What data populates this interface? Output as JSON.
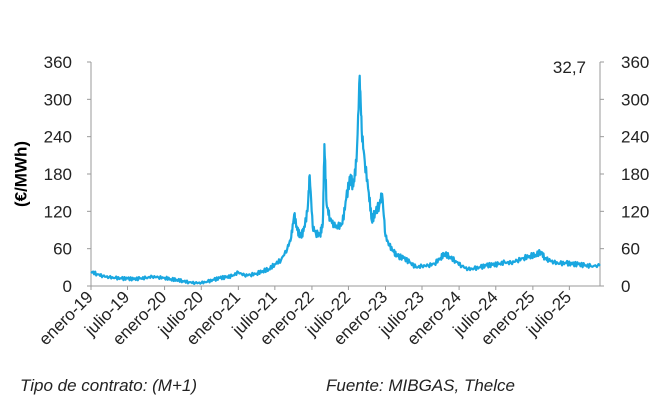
{
  "chart_data": {
    "type": "line",
    "ylabel": "(€/MWh)",
    "ylim": [
      0,
      360
    ],
    "yticks": [
      0,
      60,
      120,
      180,
      240,
      300,
      360
    ],
    "ytick_labels": [
      "0",
      "60",
      "120",
      "180",
      "240",
      "300",
      "360"
    ],
    "xlim": [
      "2019-01-01",
      "2025-11-30"
    ],
    "xticks": [
      "2019-01-01",
      "2019-07-01",
      "2020-01-01",
      "2020-07-01",
      "2021-01-01",
      "2021-07-01",
      "2022-01-01",
      "2022-07-01",
      "2023-01-01",
      "2023-07-01",
      "2024-01-01",
      "2024-07-01",
      "2025-01-01",
      "2025-07-01"
    ],
    "xtick_labels": [
      "enero-19",
      "julio-19",
      "enero-20",
      "julio-20",
      "enero-21",
      "julio-21",
      "enero-22",
      "julio-22",
      "enero-23",
      "julio-23",
      "enero-24",
      "julio-24",
      "enero-25",
      "julio-25"
    ],
    "last_value_label": "32,7",
    "grid": false,
    "legend": "none",
    "series": [
      {
        "color": "#1aa7e0",
        "points": [
          [
            "2019-01-01",
            23
          ],
          [
            "2019-02-01",
            19
          ],
          [
            "2019-03-01",
            16
          ],
          [
            "2019-04-01",
            14
          ],
          [
            "2019-05-01",
            13
          ],
          [
            "2019-06-01",
            12
          ],
          [
            "2019-07-01",
            12
          ],
          [
            "2019-08-01",
            11
          ],
          [
            "2019-09-01",
            12
          ],
          [
            "2019-10-01",
            13
          ],
          [
            "2019-11-01",
            15
          ],
          [
            "2019-12-01",
            14
          ],
          [
            "2020-01-01",
            13
          ],
          [
            "2020-02-01",
            11
          ],
          [
            "2020-03-01",
            10
          ],
          [
            "2020-04-01",
            8
          ],
          [
            "2020-05-01",
            6
          ],
          [
            "2020-06-01",
            5
          ],
          [
            "2020-07-01",
            5
          ],
          [
            "2020-08-01",
            7
          ],
          [
            "2020-09-01",
            10
          ],
          [
            "2020-10-01",
            13
          ],
          [
            "2020-11-01",
            14
          ],
          [
            "2020-12-01",
            16
          ],
          [
            "2021-01-01",
            22
          ],
          [
            "2021-02-01",
            17
          ],
          [
            "2021-03-01",
            18
          ],
          [
            "2021-04-01",
            20
          ],
          [
            "2021-05-01",
            24
          ],
          [
            "2021-06-01",
            27
          ],
          [
            "2021-07-01",
            35
          ],
          [
            "2021-08-01",
            42
          ],
          [
            "2021-09-01",
            60
          ],
          [
            "2021-09-20",
            78
          ],
          [
            "2021-10-05",
            115
          ],
          [
            "2021-10-20",
            90
          ],
          [
            "2021-11-05",
            80
          ],
          [
            "2021-11-20",
            88
          ],
          [
            "2021-12-10",
            120
          ],
          [
            "2021-12-21",
            178
          ],
          [
            "2022-01-05",
            95
          ],
          [
            "2022-01-20",
            85
          ],
          [
            "2022-02-10",
            82
          ],
          [
            "2022-02-24",
            100
          ],
          [
            "2022-03-04",
            228
          ],
          [
            "2022-03-15",
            130
          ],
          [
            "2022-04-01",
            108
          ],
          [
            "2022-04-20",
            98
          ],
          [
            "2022-05-10",
            95
          ],
          [
            "2022-06-01",
            100
          ],
          [
            "2022-06-20",
            140
          ],
          [
            "2022-07-10",
            175
          ],
          [
            "2022-07-25",
            160
          ],
          [
            "2022-08-10",
            200
          ],
          [
            "2022-08-26",
            338
          ],
          [
            "2022-09-05",
            250
          ],
          [
            "2022-09-20",
            200
          ],
          [
            "2022-10-10",
            150
          ],
          [
            "2022-10-25",
            105
          ],
          [
            "2022-11-10",
            118
          ],
          [
            "2022-12-01",
            130
          ],
          [
            "2022-12-15",
            148
          ],
          [
            "2023-01-01",
            80
          ],
          [
            "2023-01-20",
            65
          ],
          [
            "2023-02-10",
            55
          ],
          [
            "2023-03-01",
            48
          ],
          [
            "2023-04-01",
            45
          ],
          [
            "2023-05-01",
            38
          ],
          [
            "2023-06-01",
            30
          ],
          [
            "2023-07-01",
            32
          ],
          [
            "2023-08-01",
            33
          ],
          [
            "2023-09-01",
            36
          ],
          [
            "2023-10-01",
            45
          ],
          [
            "2023-10-20",
            52
          ],
          [
            "2023-11-15",
            47
          ],
          [
            "2023-12-15",
            40
          ],
          [
            "2024-01-15",
            32
          ],
          [
            "2024-02-15",
            27
          ],
          [
            "2024-03-15",
            28
          ],
          [
            "2024-04-15",
            30
          ],
          [
            "2024-05-15",
            33
          ],
          [
            "2024-06-15",
            34
          ],
          [
            "2024-07-15",
            35
          ],
          [
            "2024-08-15",
            38
          ],
          [
            "2024-09-15",
            37
          ],
          [
            "2024-10-15",
            41
          ],
          [
            "2024-11-15",
            45
          ],
          [
            "2024-12-15",
            48
          ],
          [
            "2025-01-15",
            50
          ],
          [
            "2025-02-10",
            55
          ],
          [
            "2025-03-01",
            45
          ],
          [
            "2025-03-20",
            42
          ],
          [
            "2025-04-15",
            38
          ],
          [
            "2025-05-15",
            36
          ],
          [
            "2025-06-15",
            37
          ],
          [
            "2025-07-15",
            35
          ],
          [
            "2025-08-15",
            35
          ],
          [
            "2025-09-15",
            33
          ],
          [
            "2025-10-15",
            32
          ],
          [
            "2025-11-30",
            32.7
          ]
        ]
      }
    ]
  },
  "footer": {
    "left": "Tipo de contrato: (M+1)",
    "right": "Fuente: MIBGAS, Thelce"
  }
}
